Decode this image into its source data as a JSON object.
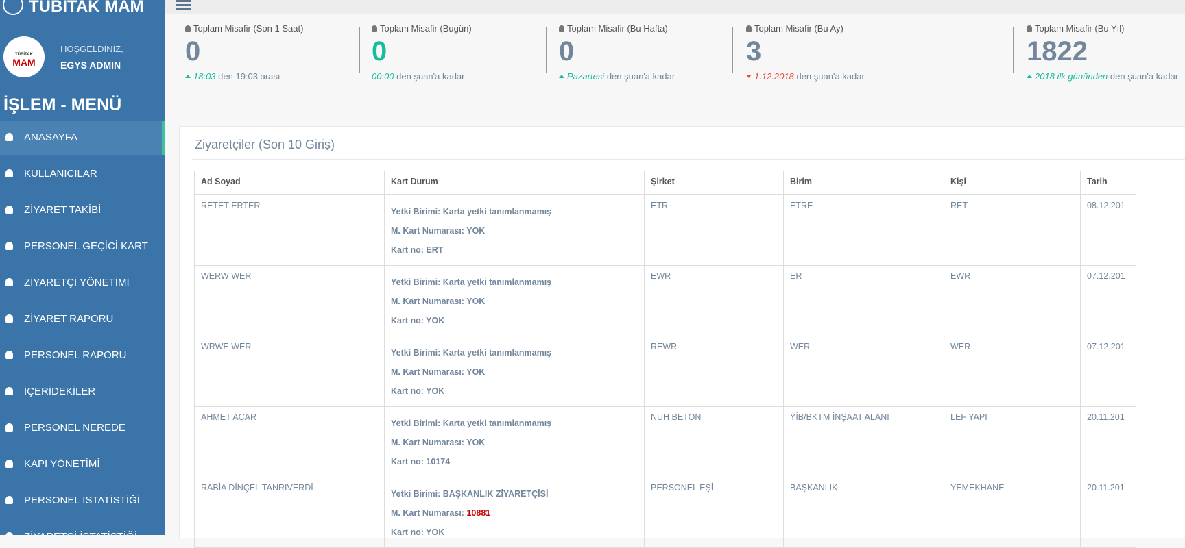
{
  "sidebar": {
    "brand": "TÜBİTAK MAM",
    "logo": {
      "top": "TÜBİTAK",
      "bottom": "MAM"
    },
    "welcome": "HOŞGELDİNİZ,",
    "user": "EGYS ADMIN",
    "menu_title": "İŞLEM - MENÜ",
    "menu": [
      "ANASAYFA",
      "KULLANICILAR",
      "ZİYARET TAKİBİ",
      "PERSONEL GEÇİCİ KART",
      "ZİYARETÇİ YÖNETİMİ",
      "ZİYARET RAPORU",
      "PERSONEL RAPORU",
      "İÇERİDEKİLER",
      "PERSONEL NEREDE",
      "KAPI YÖNETİMİ",
      "PERSONEL İSTATİSTİĞİ",
      "ZİYARETÇİ İSTATİSTİĞİ"
    ]
  },
  "stats": [
    {
      "title": "Toplam Misafir (Son 1 Saat)",
      "value": 0,
      "highlight": "18:03",
      "note": "den 19:03 arası"
    },
    {
      "title": "Toplam Misafir (Bugün)",
      "value": 0,
      "highlight": "00:00",
      "note": "den şuan'a kadar"
    },
    {
      "title": "Toplam Misafir (Bu Hafta)",
      "value": 0,
      "highlight": "Pazartesi",
      "note": "den şuan'a kadar"
    },
    {
      "title": "Toplam Misafir (Bu Ay)",
      "value": 3,
      "highlight": "1.12.2018",
      "note": "den şuan'a kadar"
    },
    {
      "title": "Toplam Misafir (Bu Yıl)",
      "value": 1822,
      "highlight": "2018 ilk gününden",
      "note": "den şuan'a kadar"
    }
  ],
  "panel": {
    "title": "Ziyaretçiler (Son 10 Giriş)"
  },
  "table": {
    "headers": [
      "Ad Soyad",
      "Kart Durum",
      "Şirket",
      "Birim",
      "Kişi",
      "Tarih"
    ],
    "kart_labels": [
      "Yetki Birimi:",
      "M. Kart Numarası:",
      "Kart no:"
    ],
    "rows": [
      [
        "RETET ERTER",
        [
          "Karta yetki tanımlanmamış",
          "YOK",
          "ERT"
        ],
        "ETR",
        "ETRE",
        "RET",
        "08.12.201"
      ],
      [
        "WERW WER",
        [
          "Karta yetki tanımlanmamış",
          "YOK",
          "YOK"
        ],
        "EWR",
        "ER",
        "EWR",
        "07.12.201"
      ],
      [
        "WRWE WER",
        [
          "Karta yetki tanımlanmamış",
          "YOK",
          "YOK"
        ],
        "REWR",
        "WER",
        "WER",
        "07.12.201"
      ],
      [
        "AHMET ACAR",
        [
          "Karta yetki tanımlanmamış",
          "YOK",
          "10174"
        ],
        "NUH BETON",
        "YİB/BKTM İNŞAAT ALANI",
        "LEF YAPI",
        "20.11.201"
      ],
      [
        "RABİA DİNÇEL TANRIVERDİ",
        [
          "BAŞKANLIK ZİYARETÇİSİ",
          "10881",
          "YOK"
        ],
        "PERSONEL EŞİ",
        "BAŞKANLIK",
        "YEMEKHANE",
        "20.11.201"
      ]
    ]
  }
}
